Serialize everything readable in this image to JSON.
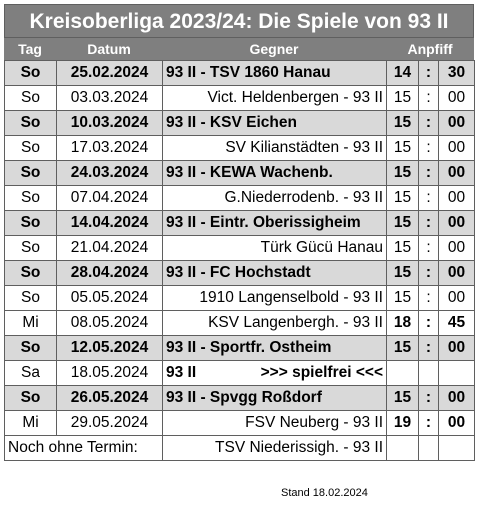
{
  "title": "Kreisoberliga 2023/24: Die Spiele von 93 II",
  "headers": {
    "tag": "Tag",
    "datum": "Datum",
    "gegner": "Gegner",
    "anpfiff": "Anpfiff"
  },
  "rows": [
    {
      "type": "home",
      "tag": "So",
      "datum": "25.02.2024",
      "gegner": "93 II - TSV 1860 Hanau",
      "hh": "14",
      "colon": ":",
      "mm": "30"
    },
    {
      "type": "away",
      "tag": "So",
      "datum": "03.03.2024",
      "gegner": "Vict. Heldenbergen - 93 II",
      "hh": "15",
      "colon": ":",
      "mm": "00"
    },
    {
      "type": "home",
      "tag": "So",
      "datum": "10.03.2024",
      "gegner": "93 II - KSV Eichen",
      "hh": "15",
      "colon": ":",
      "mm": "00"
    },
    {
      "type": "away",
      "tag": "So",
      "datum": "17.03.2024",
      "gegner": "SV Kilianstädten - 93 II",
      "hh": "15",
      "colon": ":",
      "mm": "00"
    },
    {
      "type": "home",
      "tag": "So",
      "datum": "24.03.2024",
      "gegner": "93 II - KEWA Wachenb.",
      "hh": "15",
      "colon": ":",
      "mm": "00"
    },
    {
      "type": "away",
      "tag": "So",
      "datum": "07.04.2024",
      "gegner": "G.Niederrodenb. - 93 II",
      "hh": "15",
      "colon": ":",
      "mm": "00"
    },
    {
      "type": "home",
      "tag": "So",
      "datum": "14.04.2024",
      "gegner": "93 II - Eintr. Oberissigheim",
      "hh": "15",
      "colon": ":",
      "mm": "00"
    },
    {
      "type": "away",
      "tag": "So",
      "datum": "21.04.2024",
      "gegner": "Türk Gücü Hanau",
      "hh": "15",
      "colon": ":",
      "mm": "00"
    },
    {
      "type": "home",
      "tag": "So",
      "datum": "28.04.2024",
      "gegner": "93 II - FC Hochstadt",
      "hh": "15",
      "colon": ":",
      "mm": "00"
    },
    {
      "type": "away",
      "tag": "So",
      "datum": "05.05.2024",
      "gegner": "1910 Langenselbold - 93 II",
      "hh": "15",
      "colon": ":",
      "mm": "00"
    },
    {
      "type": "away",
      "tag": "Mi",
      "datum": "08.05.2024",
      "gegner": "KSV Langenbergh. - 93 II",
      "hh": "18",
      "colon": ":",
      "mm": "45",
      "bold_time": true
    },
    {
      "type": "home",
      "tag": "So",
      "datum": "12.05.2024",
      "gegner": "93 II - Sportfr. Ostheim",
      "hh": "15",
      "colon": ":",
      "mm": "00"
    },
    {
      "type": "free",
      "tag": "Sa",
      "datum": "18.05.2024",
      "gegner_left": "93 II",
      "gegner_right": ">>> spielfrei <<<",
      "hh": "",
      "colon": "",
      "mm": ""
    },
    {
      "type": "home",
      "tag": "So",
      "datum": "26.05.2024",
      "gegner": "93 II - Spvgg Roßdorf",
      "hh": "15",
      "colon": ":",
      "mm": "00"
    },
    {
      "type": "away",
      "tag": "Mi",
      "datum": "29.05.2024",
      "gegner": "FSV Neuberg - 93 II",
      "hh": "19",
      "colon": ":",
      "mm": "00",
      "bold_time": true
    }
  ],
  "noch_ohne_termin": {
    "label": "Noch ohne Termin:",
    "gegner": "TSV Niederissigh. - 93 II"
  },
  "stand": "Stand 18.02.2024"
}
